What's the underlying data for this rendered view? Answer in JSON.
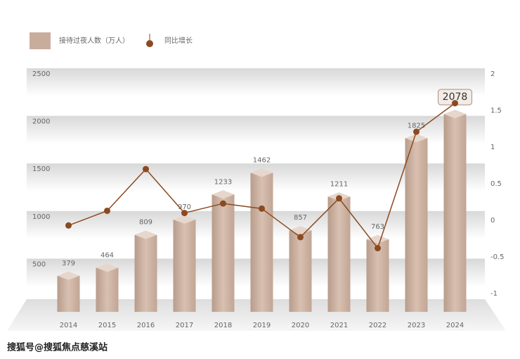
{
  "chart_data": {
    "type": "bar",
    "series_label": "接待过夜人数（万人）",
    "line_label": "同比增长",
    "categories": [
      "2014",
      "2015",
      "2016",
      "2017",
      "2018",
      "2019",
      "2020",
      "2021",
      "2022",
      "2023",
      "2024"
    ],
    "series": [
      {
        "name": "接待过夜人数（万人）",
        "color": "#cdb3a3",
        "values": [
          379,
          464,
          809,
          970,
          1233,
          1462,
          857,
          1211,
          763,
          1825,
          2078
        ]
      },
      {
        "name": "同比增长",
        "color": "#8b4a1f",
        "type": "line",
        "axis": "y2",
        "values": [
          -0.07,
          0.13,
          0.7,
          0.1,
          0.23,
          0.16,
          -0.23,
          0.3,
          -0.38,
          1.21,
          1.6
        ]
      }
    ],
    "ylim": [
      0,
      2500
    ],
    "yticks": [
      500,
      1000,
      1500,
      2000,
      2500
    ],
    "y2lim": [
      -1.25,
      2
    ],
    "y2ticks": [
      -1,
      -0.5,
      0,
      0.5,
      1,
      1.5,
      2
    ],
    "watermark": "搜狐号@搜狐焦点慈溪站"
  }
}
